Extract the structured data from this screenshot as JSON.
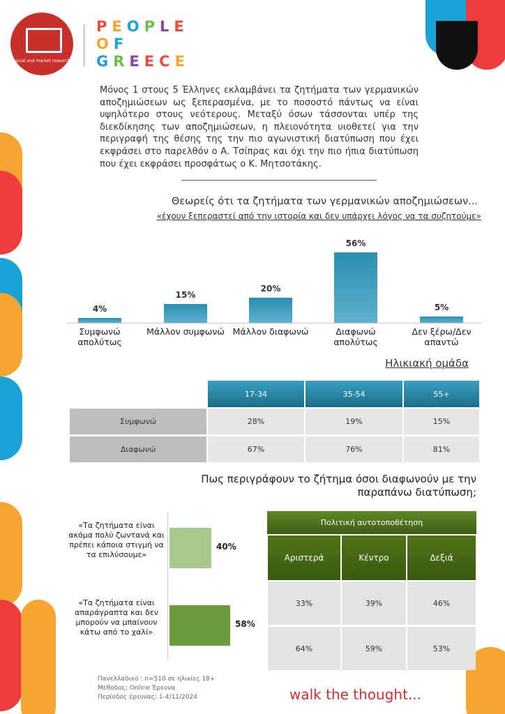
{
  "header": {
    "brand_lines": [
      "PEOPLE",
      "OF",
      "GREECE"
    ],
    "logo_caption": "social and market research"
  },
  "intro": "Μόνος 1 στους 5 Έλληνες εκλαμβάνει τα ζητήματα των γερμανικών αποζημιώσεων ως ξεπερασμένα, με το ποσοστό πάντως να είναι υψηλότερο στους νεότερους. Μεταξύ όσων τάσσονται υπέρ της διεκδίκησης των αποζημιώσεων, η πλειονότητα υιοθετεί για την περιγραφή της θέσης της την πιο αγωνιστική διατύπωση που έχει εκφράσει στο παρελθόν ο Α. Τσίπρας και όχι την πιο ήπια διατύπωση που έχει εκφράσει προσφάτως ο Κ. Μητσοτάκης.",
  "chart_data": [
    {
      "type": "bar",
      "title": "Θεωρείς ότι τα ζητήματα των γερμανικών αποζημιώσεων...",
      "subtitle": "«έχουν ξεπεραστεί από την ιστορία και δεν υπάρχει λόγος να τα συζητούμε»",
      "categories": [
        "Συμφωνώ απολύτως",
        "Μάλλον συμφωνώ",
        "Μάλλον διαφωνώ",
        "Διαφωνώ απολύτως",
        "Δεν ξέρω/Δεν απαντώ"
      ],
      "values": [
        4,
        15,
        20,
        56,
        5
      ],
      "value_labels": [
        "4%",
        "15%",
        "20%",
        "56%",
        "5%"
      ],
      "color": "#2b8fb3"
    },
    {
      "type": "hbar",
      "title": "Πως περιγράφουν το ζήτημα όσοι διαφωνούν με την παραπάνω διατύπωση;",
      "categories": [
        "«Τα ζητήματα είναι ακόμα πολύ ζωντανά και πρέπει κάποια στιγμή να τα επιλύσουμε»",
        "«Τα ζητήματα  είναι απαράγραπτα και δεν μπορούν να μπαίνουν κάτω από το χαλί»"
      ],
      "values": [
        40,
        58
      ],
      "value_labels": [
        "40%",
        "58%"
      ],
      "colors": [
        "#a9c98c",
        "#6d9c3c"
      ]
    }
  ],
  "tables": [
    {
      "group": "Ηλικιακή ομάδα",
      "columns": [
        "17-34",
        "35-54",
        "55+"
      ],
      "rows": [
        [
          "Συμφωνώ",
          "28%",
          "19%",
          "15%"
        ],
        [
          "Διαφωνώ",
          "67%",
          "76%",
          "81%"
        ]
      ]
    },
    {
      "group": "Πολιτική αυτοτοποθέτηση",
      "columns": [
        "Αριστερά",
        "Κέντρο",
        "Δεξιά"
      ],
      "rows": [
        [
          "33%",
          "39%",
          "46%"
        ],
        [
          "64%",
          "59%",
          "53%"
        ]
      ]
    }
  ],
  "footer": {
    "method": [
      "Πανελλαδικό : n=510 σε ηλικίες 18+",
      "Μέθοδος: Online Έρευνα",
      "Περίοδος έρευνας: 1-4/11/2024"
    ],
    "slogan": "walk the thought..."
  }
}
